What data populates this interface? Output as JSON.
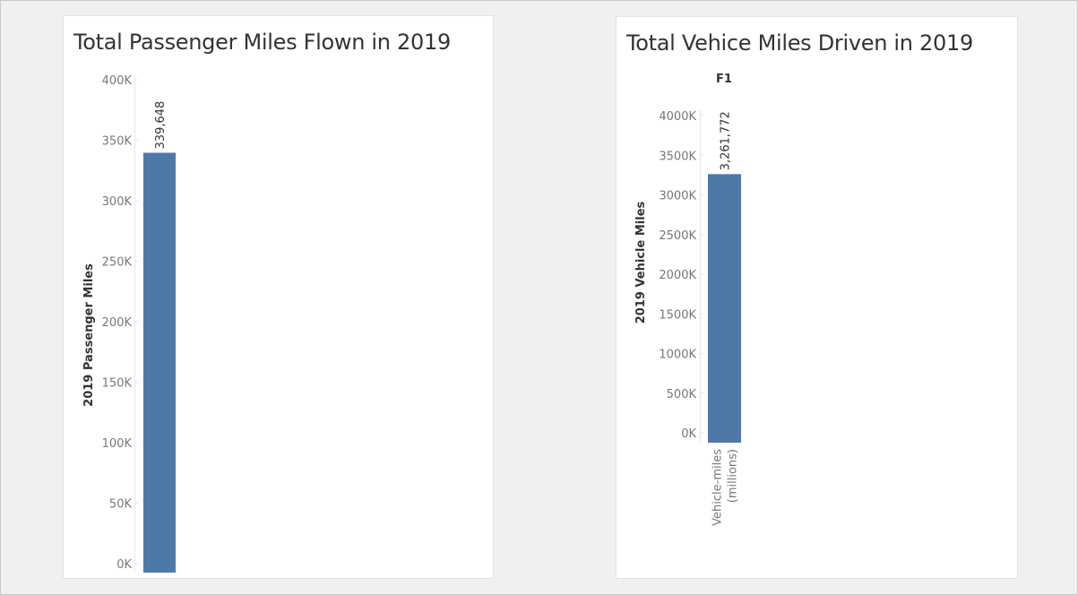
{
  "chart_data": [
    {
      "type": "bar",
      "title": "Total Passenger Miles Flown in 2019",
      "ylabel": "2019 Passenger Miles",
      "xlabel": "",
      "categories": [
        ""
      ],
      "values": [
        339648
      ],
      "data_labels": [
        "339,648"
      ],
      "ylim": [
        0,
        400000
      ],
      "yticks": [
        0,
        50000,
        100000,
        150000,
        200000,
        250000,
        300000,
        350000,
        400000
      ],
      "ytick_labels": [
        "0K",
        "50K",
        "100K",
        "150K",
        "200K",
        "250K",
        "300K",
        "350K",
        "400K"
      ],
      "bar_color": "#4e79a7",
      "grid": false
    },
    {
      "type": "bar",
      "title": "Total Vehice Miles Driven in 2019",
      "facet_label": "F1",
      "ylabel": "2019 Vehicle Miles",
      "xlabel": "",
      "categories": [
        "Vehicle-miles (millions)"
      ],
      "category_label_lines": [
        "Vehicle-miles",
        "(millions)"
      ],
      "values": [
        3261772
      ],
      "data_labels": [
        "3,261,772"
      ],
      "ylim": [
        0,
        4000000
      ],
      "yticks": [
        0,
        500000,
        1000000,
        1500000,
        2000000,
        2500000,
        3000000,
        3500000,
        4000000
      ],
      "ytick_labels": [
        "0K",
        "500K",
        "1000K",
        "1500K",
        "2000K",
        "2500K",
        "3000K",
        "3500K",
        "4000K"
      ],
      "bar_color": "#4e79a7",
      "grid": false
    }
  ]
}
